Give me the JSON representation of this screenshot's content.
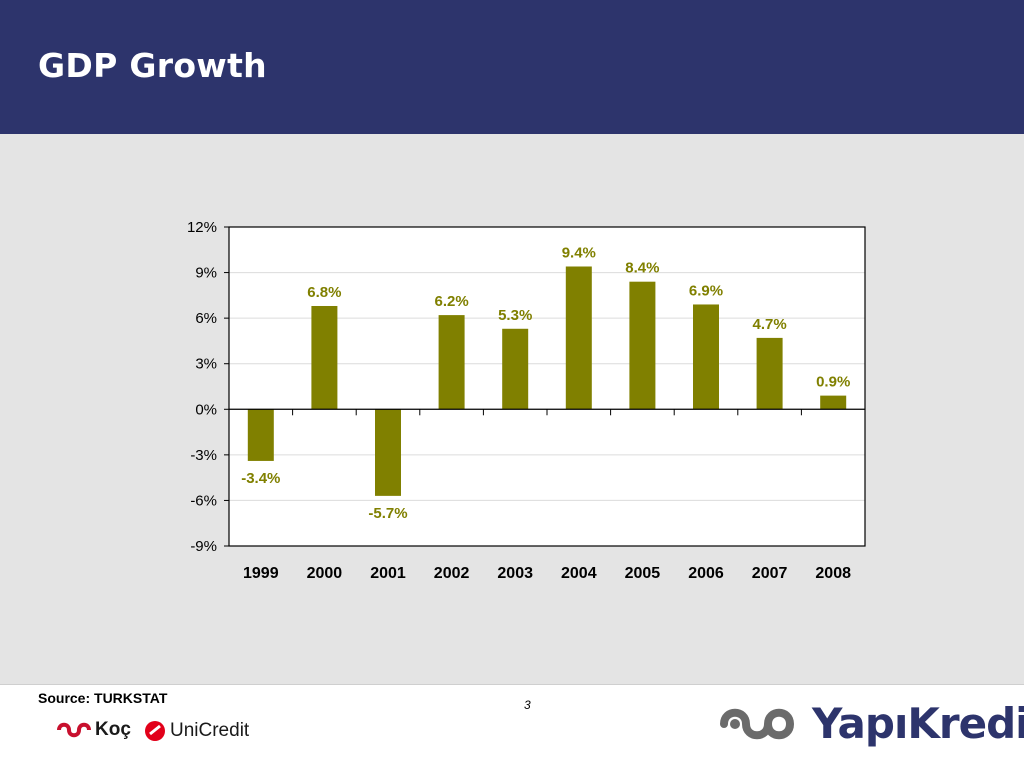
{
  "header": {
    "title": "GDP Growth"
  },
  "chart_data": {
    "type": "bar",
    "categories": [
      "1999",
      "2000",
      "2001",
      "2002",
      "2003",
      "2004",
      "2005",
      "2006",
      "2007",
      "2008"
    ],
    "values": [
      -3.4,
      6.8,
      -5.7,
      6.2,
      5.3,
      9.4,
      8.4,
      6.9,
      4.7,
      0.9
    ],
    "data_labels": [
      "-3.4%",
      "6.8%",
      "-5.7%",
      "6.2%",
      "5.3%",
      "9.4%",
      "8.4%",
      "6.9%",
      "4.7%",
      "0.9%"
    ],
    "yticks": [
      12,
      9,
      6,
      3,
      0,
      -3,
      -6,
      -9
    ],
    "ytick_labels": [
      "12%",
      "9%",
      "6%",
      "3%",
      "0%",
      "-3%",
      "-6%",
      "-9%"
    ],
    "ylim": [
      -9,
      12
    ],
    "grid": true,
    "bar_color": "#808000",
    "label_color": "#808000"
  },
  "footer": {
    "source": "Source: TURKSTAT",
    "page_number": "3",
    "logo_koc": "Koç",
    "logo_unicredit": "UniCredit",
    "logo_yapikredi": "YapıKredi"
  }
}
